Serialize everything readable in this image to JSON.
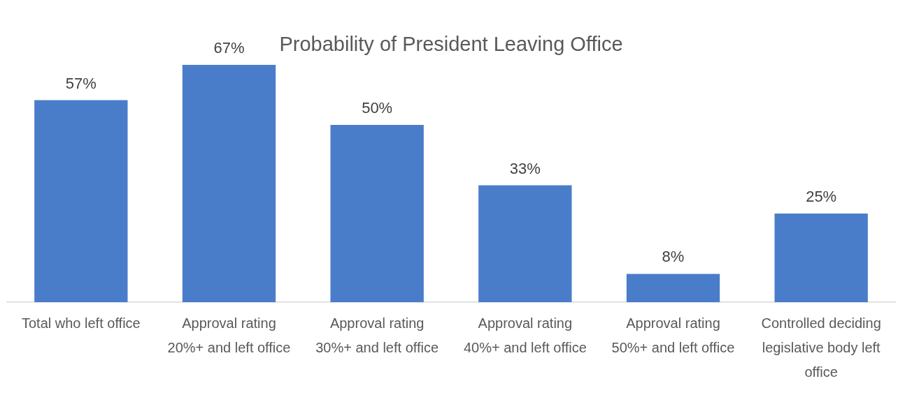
{
  "chart_data": {
    "type": "bar",
    "title": "Probability of President Leaving Office",
    "categories": [
      "Total who left office",
      "Approval rating 20%+ and left office",
      "Approval rating 30%+ and left office",
      "Approval rating 40%+ and left office",
      "Approval rating 50%+ and left office",
      "Controlled deciding legislative body left office"
    ],
    "values": [
      57,
      67,
      50,
      33,
      8,
      25
    ],
    "value_labels": [
      "57%",
      "67%",
      "50%",
      "33%",
      "8%",
      "25%"
    ],
    "color": "#4a7dc9",
    "grid": false,
    "legend": false
  }
}
